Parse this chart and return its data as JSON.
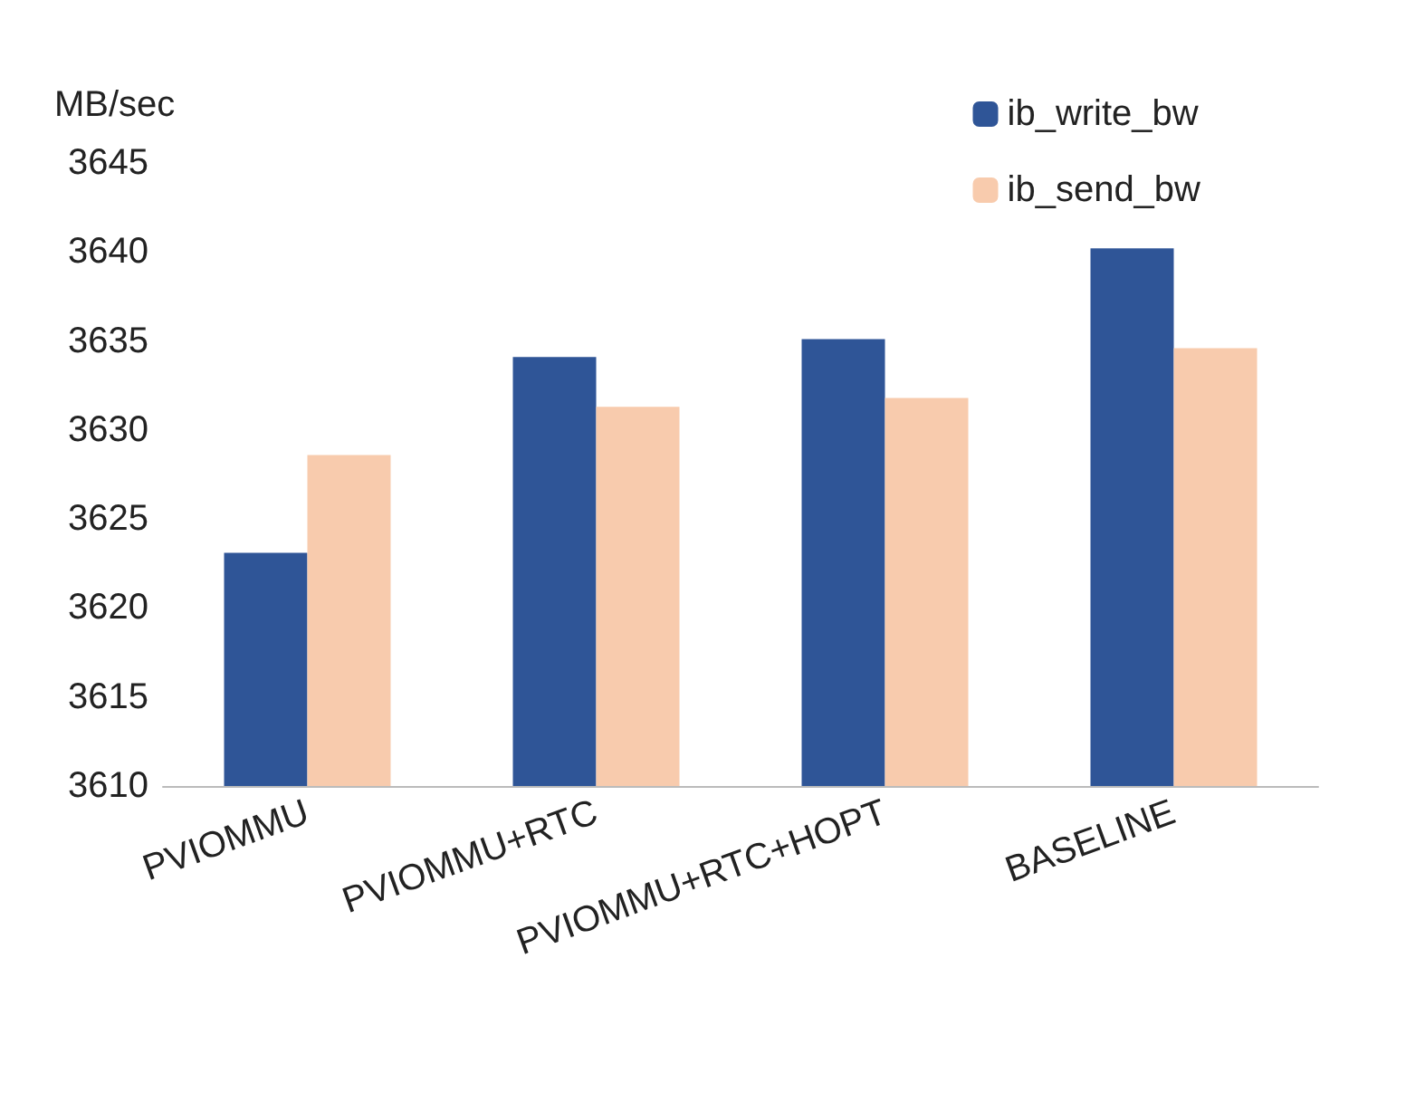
{
  "chart_data": {
    "type": "bar",
    "ylabel": "MB/sec",
    "categories": [
      "PVIOMMU",
      "PVIOMMU+RTC",
      "PVIOMMU+RTC+HOPT",
      "BASELINE"
    ],
    "series": [
      {
        "name": "ib_write_bw",
        "color": "#2f5597",
        "values": [
          3623.1,
          3634.1,
          3635.1,
          3640.2
        ]
      },
      {
        "name": "ib_send_bw",
        "color": "#f8cbad",
        "values": [
          3628.6,
          3631.3,
          3631.8,
          3634.6
        ]
      }
    ],
    "ylim": [
      3610,
      3645
    ],
    "yticks": [
      3610,
      3615,
      3620,
      3625,
      3630,
      3635,
      3640,
      3645
    ],
    "grid": false,
    "legend": "top right"
  }
}
